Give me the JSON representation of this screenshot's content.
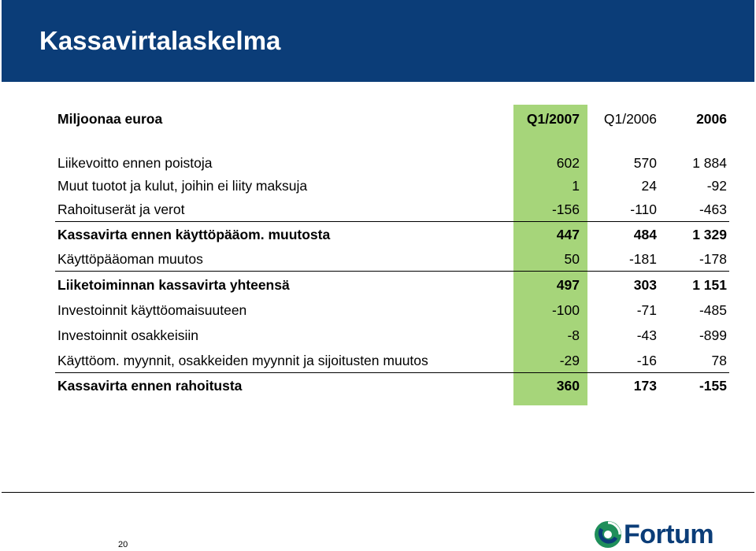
{
  "title": "Kassavirtalaskelma",
  "table": {
    "header": {
      "label": "Miljoonaa euroa",
      "cols": [
        "Q1/2007",
        "Q1/2006",
        "2006"
      ]
    },
    "rows": [
      {
        "label": "Liiketoiminnan kassavirta yhteensä",
        "values": [
          "497",
          "303",
          "1 151"
        ]
      },
      {
        "label": "Kassavirta ennen rahoitusta",
        "values": [
          "360",
          "173",
          "-155"
        ]
      }
    ],
    "r1": {
      "label": "Liikevoitto ennen poistoja",
      "values": [
        "602",
        "570",
        "1 884"
      ]
    },
    "r2": {
      "label": "Muut tuotot ja kulut, joihin ei liity maksuja",
      "values": [
        "1",
        "24",
        "-92"
      ]
    },
    "r3": {
      "label": "Rahoituserät ja verot",
      "values": [
        "-156",
        "-110",
        "-463"
      ]
    },
    "r4": {
      "label": "Kassavirta ennen käyttöpääom. muutosta",
      "values": [
        "447",
        "484",
        "1 329"
      ]
    },
    "r5": {
      "label": "Käyttöpääoman muutos",
      "values": [
        "50",
        "-181",
        "-178"
      ]
    },
    "r6": {
      "label": "Liiketoiminnan kassavirta yhteensä",
      "values": [
        "497",
        "303",
        "1 151"
      ]
    },
    "r7": {
      "label": "Investoinnit käyttöomaisuuteen",
      "values": [
        "-100",
        "-71",
        "-485"
      ]
    },
    "r8": {
      "label": "Investoinnit osakkeisiin",
      "values": [
        "-8",
        "-43",
        "-899"
      ]
    },
    "r9": {
      "label": "Käyttöom. myynnit, osakkeiden myynnit ja sijoitusten muutos",
      "values": [
        "-29",
        "-16",
        "78"
      ]
    },
    "r10": {
      "label": "Kassavirta ennen rahoitusta",
      "values": [
        "360",
        "173",
        "-155"
      ]
    }
  },
  "footer": {
    "page_number": "20",
    "logo_text": "Fortum"
  },
  "colors": {
    "title_bar": "#0b3d78",
    "highlight": "#a6d57a",
    "logo_orb": "#1f8f5a"
  }
}
